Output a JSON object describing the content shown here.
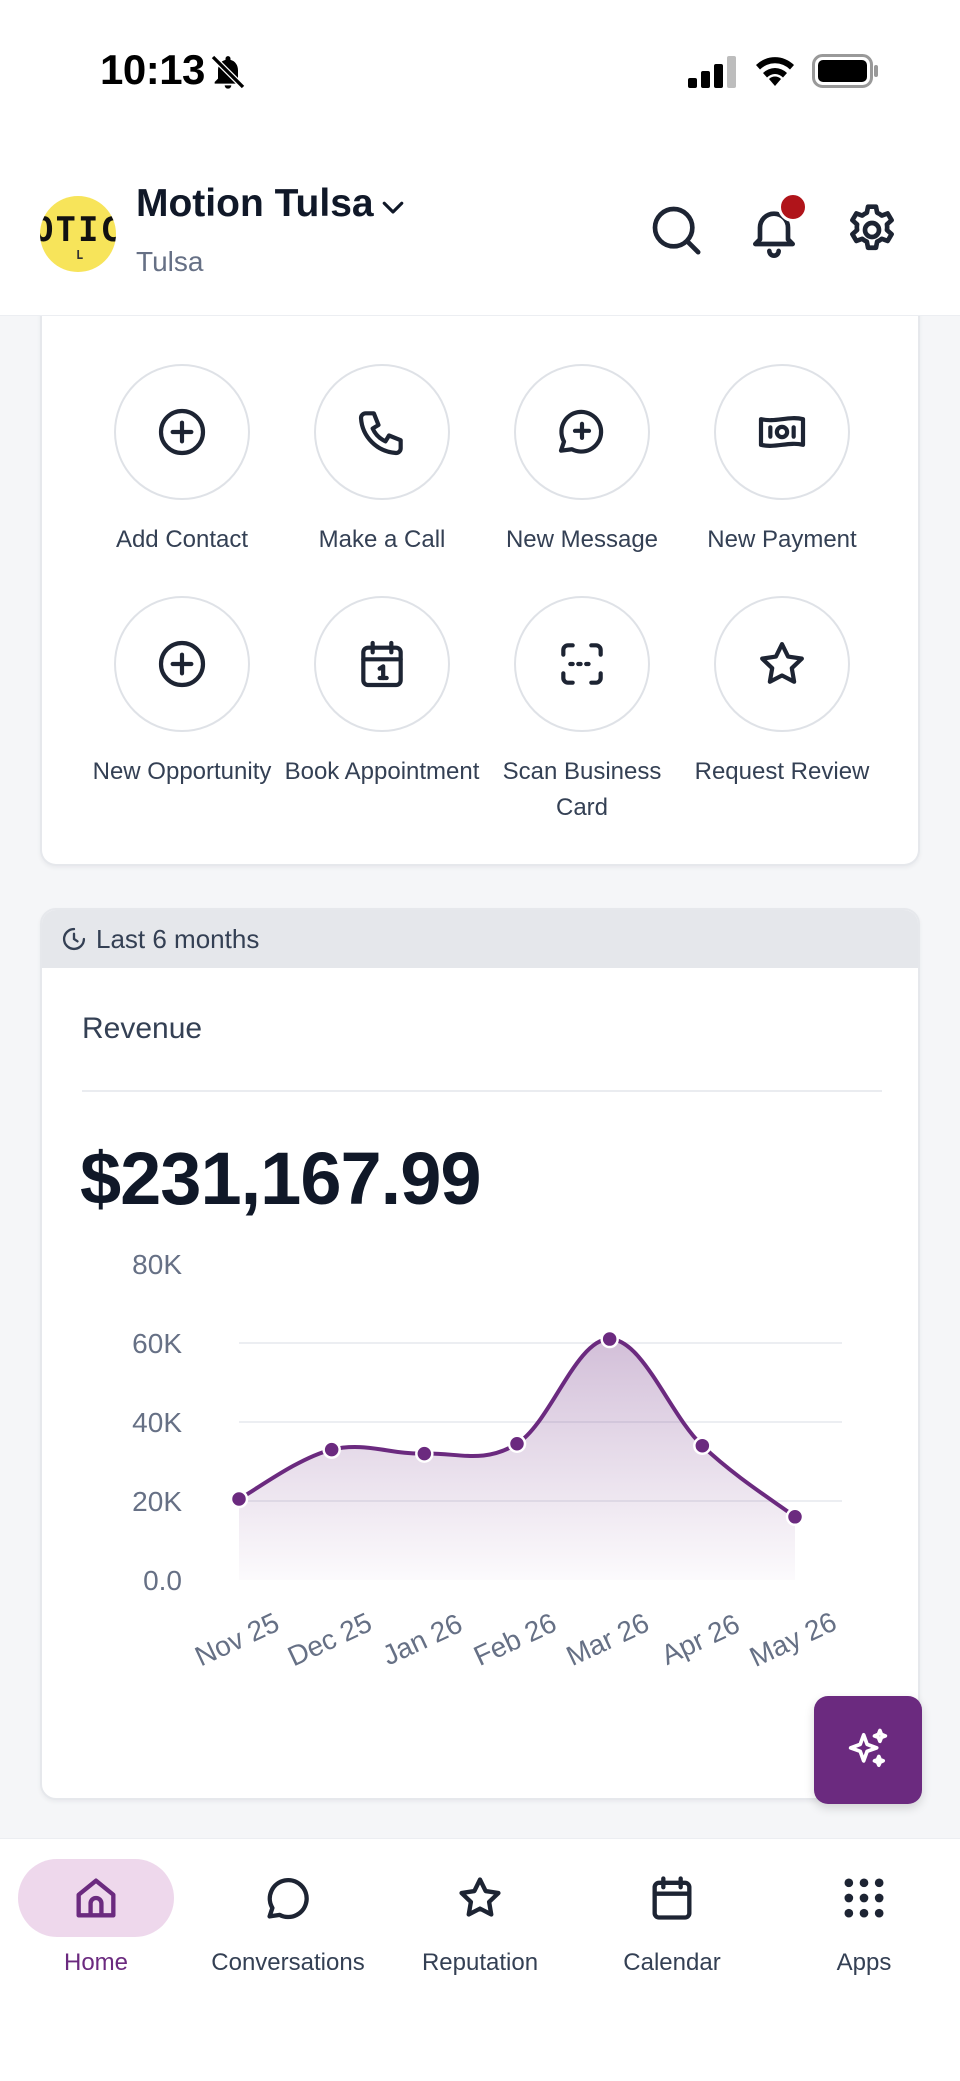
{
  "status_bar": {
    "time": "10:13"
  },
  "header": {
    "avatar_text": "OTIC",
    "avatar_sub": "L",
    "org_name": "Motion Tulsa",
    "org_location": "Tulsa"
  },
  "quick_actions": [
    {
      "label": "Add Contact",
      "icon": "plus-circle-icon"
    },
    {
      "label": "Make a Call",
      "icon": "phone-icon"
    },
    {
      "label": "New Message",
      "icon": "message-plus-icon"
    },
    {
      "label": "New Payment",
      "icon": "cash-icon"
    },
    {
      "label": "New Opportunity",
      "icon": "plus-circle-icon"
    },
    {
      "label": "Book Appointment",
      "icon": "calendar-icon"
    },
    {
      "label": "Scan Business Card",
      "icon": "scan-icon"
    },
    {
      "label": "Request Review",
      "icon": "star-icon"
    }
  ],
  "revenue": {
    "period": "Last 6 months",
    "title": "Revenue",
    "amount": "$231,167.99"
  },
  "chart_data": {
    "type": "area",
    "categories": [
      "Nov 25",
      "Dec 25",
      "Jan 26",
      "Feb 26",
      "Mar 26",
      "Apr 26",
      "May 26"
    ],
    "values": [
      20500,
      33000,
      32000,
      34500,
      61000,
      34000,
      16000
    ],
    "y_ticks": [
      "0.0",
      "20K",
      "40K",
      "60K",
      "80K"
    ],
    "ylim": [
      0,
      80000
    ],
    "grid": true,
    "color": "#6b2a7f"
  },
  "tabs": [
    {
      "label": "Home",
      "icon": "home-icon",
      "active": true
    },
    {
      "label": "Conversations",
      "icon": "chat-icon",
      "active": false
    },
    {
      "label": "Reputation",
      "icon": "star-icon",
      "active": false
    },
    {
      "label": "Calendar",
      "icon": "calendar-icon",
      "active": false
    },
    {
      "label": "Apps",
      "icon": "grid-icon",
      "active": false
    }
  ],
  "colors": {
    "accent": "#6b2a7f",
    "tab_active_bg": "#eed8ec",
    "notification": "#b0141a"
  }
}
